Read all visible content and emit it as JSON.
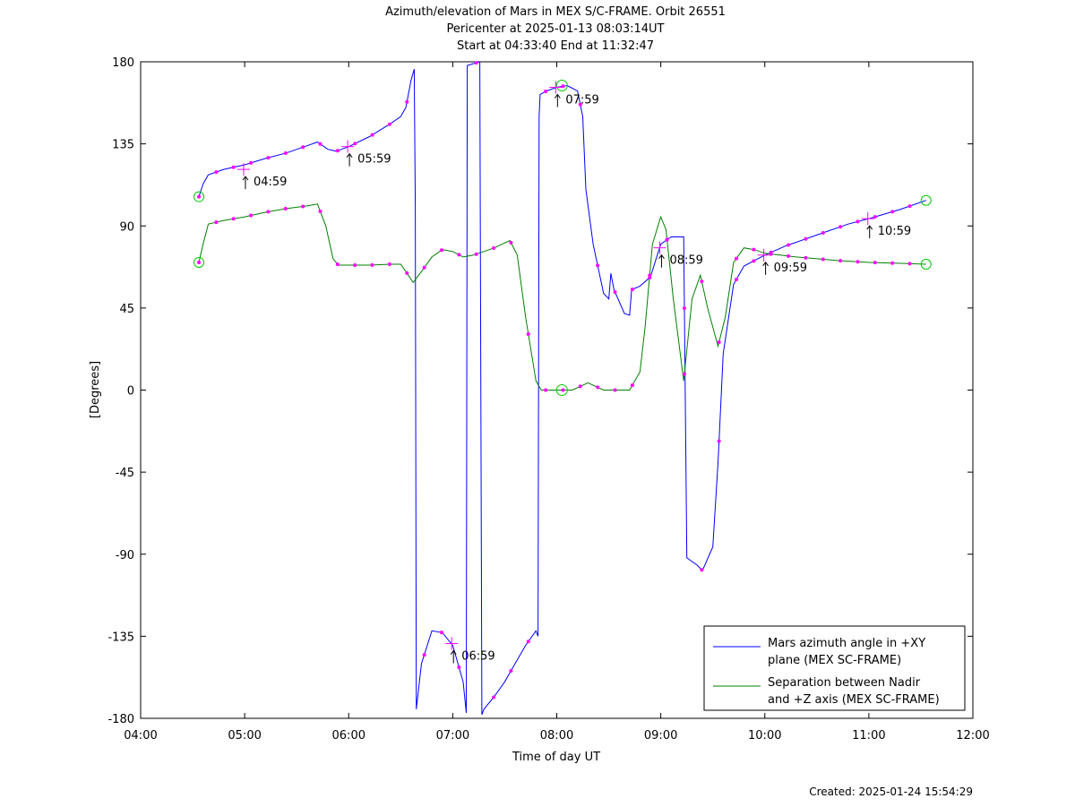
{
  "chart_data": {
    "type": "line",
    "title": "Azimuth/elevation of Mars in MEX S/C-FRAME.  Orbit 26551",
    "subtitle_1": "Pericenter at 2025-01-13 08:03:14UT",
    "subtitle_2": "Start at 04:33:40 End at 11:32:47",
    "xlabel": "Time of day UT",
    "ylabel": "[Degrees]",
    "xlim": [
      4,
      12
    ],
    "ylim": [
      -180,
      180
    ],
    "x_ticks": [
      {
        "v": 4,
        "label": "04:00"
      },
      {
        "v": 5,
        "label": "05:00"
      },
      {
        "v": 6,
        "label": "06:00"
      },
      {
        "v": 7,
        "label": "07:00"
      },
      {
        "v": 8,
        "label": "08:00"
      },
      {
        "v": 9,
        "label": "09:00"
      },
      {
        "v": 10,
        "label": "10:00"
      },
      {
        "v": 11,
        "label": "11:00"
      },
      {
        "v": 12,
        "label": "12:00"
      }
    ],
    "y_ticks": [
      {
        "v": 180,
        "label": "180"
      },
      {
        "v": 135,
        "label": "135"
      },
      {
        "v": 90,
        "label": "90"
      },
      {
        "v": 45,
        "label": "45"
      },
      {
        "v": 0,
        "label": "0"
      },
      {
        "v": -45,
        "label": "-45"
      },
      {
        "v": -90,
        "label": "-90"
      },
      {
        "v": -135,
        "label": "-135"
      },
      {
        "v": -180,
        "label": "-180"
      }
    ],
    "legend_position": "bottom-right",
    "series": [
      {
        "name_line1": "Mars azimuth angle in +XY",
        "name_line2": "plane (MEX SC-FRAME)",
        "color": "#0000ff",
        "points": [
          [
            4.56,
            106
          ],
          [
            4.6,
            113
          ],
          [
            4.65,
            118
          ],
          [
            4.8,
            121
          ],
          [
            5.0,
            123.5
          ],
          [
            5.2,
            127
          ],
          [
            5.4,
            130
          ],
          [
            5.6,
            134
          ],
          [
            5.7,
            136
          ],
          [
            5.8,
            132
          ],
          [
            5.88,
            131
          ],
          [
            6.0,
            133.5
          ],
          [
            6.2,
            139
          ],
          [
            6.4,
            146
          ],
          [
            6.5,
            150
          ],
          [
            6.55,
            155
          ],
          [
            6.6,
            170
          ],
          [
            6.63,
            176
          ],
          [
            6.64,
            100
          ],
          [
            6.65,
            -175
          ],
          [
            6.7,
            -150
          ],
          [
            6.8,
            -132
          ],
          [
            6.9,
            -133
          ],
          [
            7.0,
            -140
          ],
          [
            7.1,
            -160
          ],
          [
            7.13,
            -177
          ],
          [
            7.14,
            178
          ],
          [
            7.2,
            179
          ],
          [
            7.26,
            180
          ],
          [
            7.28,
            -178
          ],
          [
            7.3,
            -175
          ],
          [
            7.4,
            -168
          ],
          [
            7.5,
            -160
          ],
          [
            7.6,
            -150
          ],
          [
            7.7,
            -140
          ],
          [
            7.8,
            -132
          ],
          [
            7.82,
            -135
          ],
          [
            7.83,
            150
          ],
          [
            7.84,
            162
          ],
          [
            7.9,
            164
          ],
          [
            8.0,
            166
          ],
          [
            8.1,
            167
          ],
          [
            8.2,
            164
          ],
          [
            8.25,
            150
          ],
          [
            8.28,
            110
          ],
          [
            8.35,
            80
          ],
          [
            8.45,
            53
          ],
          [
            8.5,
            50
          ],
          [
            8.52,
            64
          ],
          [
            8.55,
            55
          ],
          [
            8.65,
            42
          ],
          [
            8.7,
            41
          ],
          [
            8.72,
            55
          ],
          [
            8.8,
            57
          ],
          [
            8.9,
            62
          ],
          [
            9.0,
            80
          ],
          [
            9.1,
            84
          ],
          [
            9.22,
            84
          ],
          [
            9.25,
            -92
          ],
          [
            9.35,
            -96
          ],
          [
            9.4,
            -99
          ],
          [
            9.5,
            -86
          ],
          [
            9.55,
            -40
          ],
          [
            9.6,
            20
          ],
          [
            9.7,
            58
          ],
          [
            9.8,
            68
          ],
          [
            10.0,
            74
          ],
          [
            10.2,
            79
          ],
          [
            10.5,
            85
          ],
          [
            10.8,
            91
          ],
          [
            11.0,
            94
          ],
          [
            11.3,
            99
          ],
          [
            11.55,
            104
          ]
        ]
      },
      {
        "name_line1": "Separation between Nadir",
        "name_line2": "and +Z axis (MEX SC-FRAME)",
        "color": "#008000",
        "points": [
          [
            4.56,
            70
          ],
          [
            4.6,
            80
          ],
          [
            4.65,
            91
          ],
          [
            4.8,
            93
          ],
          [
            5.0,
            95
          ],
          [
            5.2,
            97.5
          ],
          [
            5.4,
            99.5
          ],
          [
            5.6,
            101
          ],
          [
            5.7,
            102
          ],
          [
            5.78,
            90
          ],
          [
            5.85,
            72
          ],
          [
            5.9,
            68.5
          ],
          [
            6.0,
            68.5
          ],
          [
            6.2,
            68.5
          ],
          [
            6.4,
            69
          ],
          [
            6.5,
            69
          ],
          [
            6.55,
            65
          ],
          [
            6.62,
            59
          ],
          [
            6.7,
            65
          ],
          [
            6.8,
            73
          ],
          [
            6.9,
            77
          ],
          [
            7.0,
            76
          ],
          [
            7.1,
            73
          ],
          [
            7.2,
            74
          ],
          [
            7.3,
            76
          ],
          [
            7.4,
            78
          ],
          [
            7.55,
            82
          ],
          [
            7.62,
            74
          ],
          [
            7.7,
            40
          ],
          [
            7.8,
            5
          ],
          [
            7.85,
            0
          ],
          [
            8.0,
            0
          ],
          [
            8.15,
            0
          ],
          [
            8.3,
            4
          ],
          [
            8.45,
            0
          ],
          [
            8.7,
            0
          ],
          [
            8.8,
            10
          ],
          [
            8.85,
            35
          ],
          [
            8.92,
            80
          ],
          [
            9.0,
            95
          ],
          [
            9.05,
            88
          ],
          [
            9.12,
            50
          ],
          [
            9.22,
            5
          ],
          [
            9.3,
            50
          ],
          [
            9.38,
            63
          ],
          [
            9.45,
            45
          ],
          [
            9.55,
            24
          ],
          [
            9.62,
            40
          ],
          [
            9.7,
            70
          ],
          [
            9.8,
            78
          ],
          [
            9.9,
            77
          ],
          [
            10.0,
            75
          ],
          [
            10.3,
            73
          ],
          [
            10.7,
            71
          ],
          [
            11.0,
            70
          ],
          [
            11.3,
            69.5
          ],
          [
            11.55,
            69
          ]
        ]
      }
    ],
    "time_marks": [
      {
        "x": 4.99,
        "y": 121,
        "label": "04:59"
      },
      {
        "x": 5.99,
        "y": 133.5,
        "label": "05:59"
      },
      {
        "x": 6.99,
        "y": -139,
        "label": "06:59"
      },
      {
        "x": 7.99,
        "y": 166,
        "label": "07:59"
      },
      {
        "x": 8.99,
        "y": 78,
        "label": "08:59"
      },
      {
        "x": 9.99,
        "y": 74,
        "label": "09:59"
      },
      {
        "x": 10.99,
        "y": 94,
        "label": "10:59"
      }
    ],
    "created": "Created: 2025-01-24 15:54:29"
  }
}
